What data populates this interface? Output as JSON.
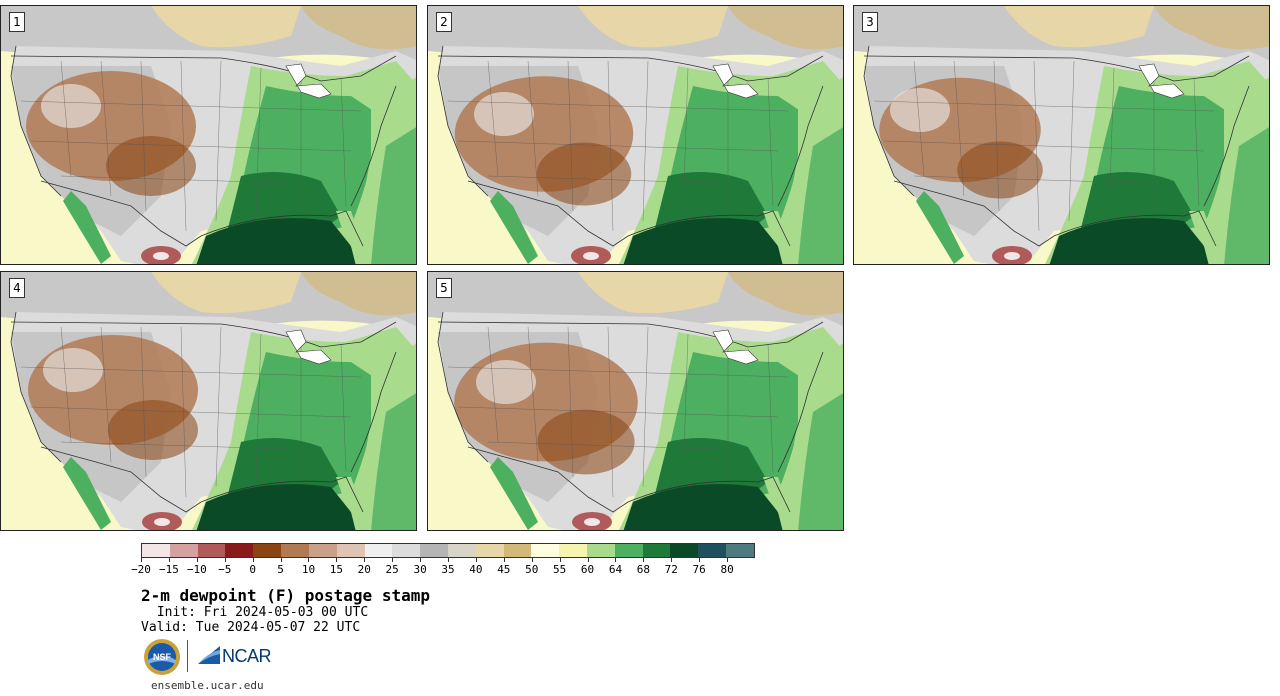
{
  "panels": [
    {
      "label": "1"
    },
    {
      "label": "2"
    },
    {
      "label": "3"
    },
    {
      "label": "4"
    },
    {
      "label": "5"
    }
  ],
  "colorbar": {
    "colors": [
      "#f3e6e6",
      "#d4a0a0",
      "#b05a5a",
      "#8b1a1a",
      "#8b4513",
      "#b07a55",
      "#c9a088",
      "#dfc3b4",
      "#efefef",
      "#dcdcdc",
      "#b5b5b5",
      "#d8d5c8",
      "#e6d6a8",
      "#d4b87a",
      "#ffffe0",
      "#f5f5b0",
      "#a8dc8c",
      "#4cb060",
      "#1f7a3a",
      "#0a4a26",
      "#1f5060",
      "#4f7a80"
    ],
    "tick_labels": [
      "−20",
      "−15",
      "−10",
      "−5",
      "0",
      "5",
      "10",
      "15",
      "20",
      "25",
      "30",
      "35",
      "40",
      "45",
      "50",
      "55",
      "60",
      "64",
      "68",
      "72",
      "76",
      "80"
    ]
  },
  "title": "2-m dewpoint (F) postage stamp",
  "init": " Init: Fri 2024-05-03 00 UTC",
  "valid": "Valid: Tue 2024-05-07 22 UTC",
  "logos": {
    "nsf_text": "NSF",
    "ncar_text": "NCAR"
  },
  "site": "ensemble.ucar.edu"
}
